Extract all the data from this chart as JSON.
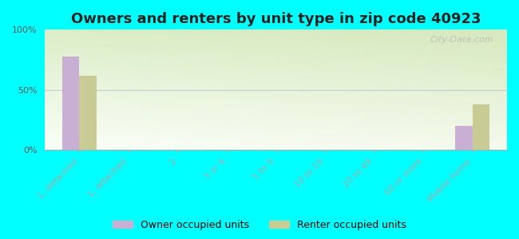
{
  "title": "Owners and renters by unit type in zip code 40923",
  "categories": [
    "1, detached",
    "1, attached",
    "2",
    "3 or 4",
    "5 to 9",
    "10 to 19",
    "20 to 49",
    "50 or more",
    "Mobile home"
  ],
  "owner_values": [
    78,
    0,
    0,
    0,
    0,
    0,
    0,
    0,
    20
  ],
  "renter_values": [
    62,
    0,
    0,
    0,
    0,
    0,
    0,
    0,
    38
  ],
  "owner_color": "#c9afd4",
  "renter_color": "#c8cc94",
  "background_color": "#00ffff",
  "ylim": [
    0,
    100
  ],
  "yticks": [
    0,
    50,
    100
  ],
  "ytick_labels": [
    "0%",
    "50%",
    "100%"
  ],
  "bar_width": 0.35,
  "watermark": "City-Data.com",
  "legend_owner": "Owner occupied units",
  "legend_renter": "Renter occupied units",
  "title_fontsize": 13,
  "tick_fontsize": 8,
  "legend_fontsize": 9
}
